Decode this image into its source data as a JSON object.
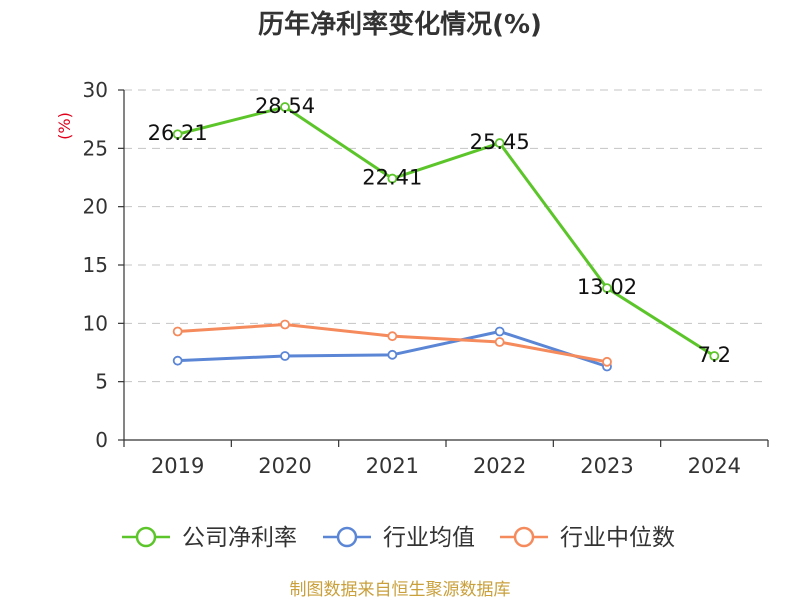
{
  "chart_data": {
    "type": "line",
    "title": "历年净利率变化情况(%)",
    "xlabel": "",
    "ylabel": "(%)",
    "ylim": [
      0,
      30
    ],
    "yticks": [
      0,
      5,
      10,
      15,
      20,
      25,
      30
    ],
    "grid": true,
    "legend": "bottom",
    "categories": [
      "2019",
      "2020",
      "2021",
      "2022",
      "2023",
      "2024"
    ],
    "series": [
      {
        "name": "公司净利率",
        "color": "#5cc52a",
        "data_labels": true,
        "values": [
          26.21,
          28.54,
          22.41,
          25.45,
          13.02,
          7.2
        ]
      },
      {
        "name": "行业均值",
        "color": "#5b86d6",
        "data_labels": false,
        "values": [
          6.8,
          7.2,
          7.3,
          9.3,
          6.3,
          null
        ]
      },
      {
        "name": "行业中位数",
        "color": "#f58a5c",
        "data_labels": false,
        "values": [
          9.3,
          9.9,
          8.9,
          8.4,
          6.7,
          null
        ]
      }
    ]
  },
  "footer": {
    "source": "制图数据来自恒生聚源数据库"
  }
}
